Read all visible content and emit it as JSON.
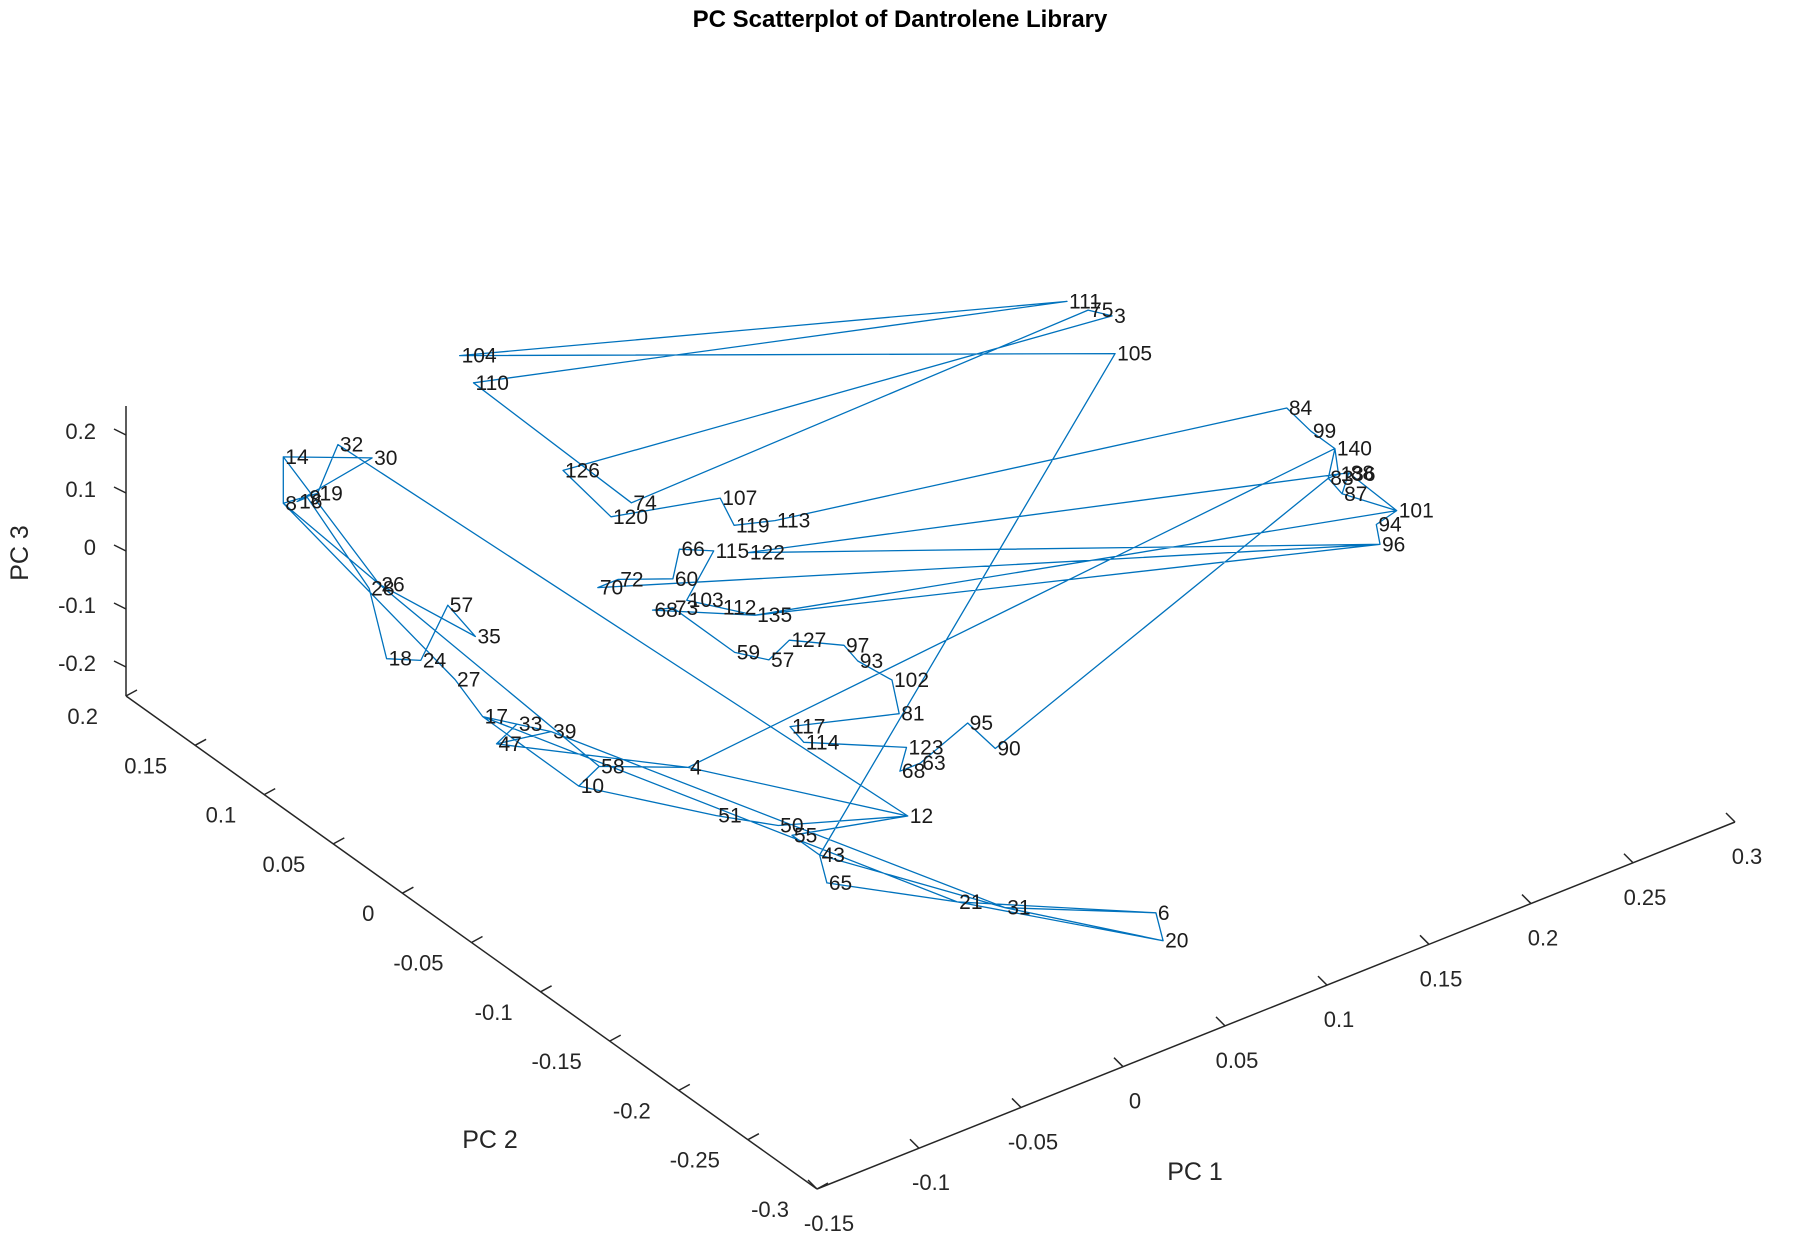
{
  "chart_data": {
    "type": "line",
    "title": "PC Scatterplot of Dantrolene Library",
    "xlabel": "PC 1",
    "ylabel": "PC 2",
    "zlabel": "PC 3",
    "grid": false,
    "legend": "none",
    "line_color": "#0072BD",
    "xlim": [
      -0.15,
      0.3
    ],
    "ylim": [
      -0.3,
      0.2
    ],
    "zlim": [
      -0.25,
      0.25
    ],
    "xticks": [
      "-0.15",
      "-0.1",
      "-0.05",
      "0",
      "0.05",
      "0.1",
      "0.15",
      "0.2",
      "0.25",
      "0.3"
    ],
    "yticks": [
      "-0.3",
      "-0.25",
      "-0.2",
      "-0.15",
      "-0.1",
      "-0.05",
      "0",
      "0.05",
      "0.1",
      "0.15",
      "0.2"
    ],
    "zticks": [
      "-0.2",
      "-0.1",
      "0",
      "0.1",
      "0.2"
    ],
    "points": [
      {
        "label": "14",
        "x": -0.1,
        "y": 0.16,
        "z": 0.16
      },
      {
        "label": "32",
        "x": -0.08,
        "y": 0.15,
        "z": 0.17
      },
      {
        "label": "30",
        "x": -0.07,
        "y": 0.14,
        "z": 0.15
      },
      {
        "label": "16",
        "x": -0.1,
        "y": 0.15,
        "z": 0.1
      },
      {
        "label": "9",
        "x": -0.095,
        "y": 0.15,
        "z": 0.1
      },
      {
        "label": "19",
        "x": -0.09,
        "y": 0.15,
        "z": 0.1
      },
      {
        "label": "8",
        "x": -0.1,
        "y": 0.16,
        "z": 0.08
      },
      {
        "label": "104",
        "x": 0.0,
        "y": 0.18,
        "z": 0.16
      },
      {
        "label": "110",
        "x": 0.0,
        "y": 0.17,
        "z": 0.13
      },
      {
        "label": "75",
        "x": 0.22,
        "y": 0.05,
        "z": 0.15
      },
      {
        "label": "3",
        "x": 0.225,
        "y": 0.04,
        "z": 0.15
      },
      {
        "label": "111",
        "x": 0.23,
        "y": 0.08,
        "z": 0.1
      },
      {
        "label": "105",
        "x": 0.24,
        "y": 0.06,
        "z": 0.03
      },
      {
        "label": "126",
        "x": 0.01,
        "y": 0.12,
        "z": 0.05
      },
      {
        "label": "107",
        "x": 0.06,
        "y": 0.08,
        "z": 0.0
      },
      {
        "label": "74",
        "x": 0.03,
        "y": 0.1,
        "z": 0.0
      },
      {
        "label": "120",
        "x": 0.02,
        "y": 0.1,
        "z": -0.01
      },
      {
        "label": "119",
        "x": 0.06,
        "y": 0.07,
        "z": -0.03
      },
      {
        "label": "113",
        "x": 0.08,
        "y": 0.07,
        "z": -0.05
      },
      {
        "label": "122",
        "x": 0.06,
        "y": 0.06,
        "z": -0.06
      },
      {
        "label": "70",
        "x": 0.0,
        "y": 0.08,
        "z": -0.07
      },
      {
        "label": "72",
        "x": 0.01,
        "y": 0.08,
        "z": -0.07
      },
      {
        "label": "60",
        "x": 0.03,
        "y": 0.07,
        "z": -0.08
      },
      {
        "label": "66",
        "x": 0.04,
        "y": 0.08,
        "z": -0.06
      },
      {
        "label": "115",
        "x": 0.05,
        "y": 0.07,
        "z": -0.06
      },
      {
        "label": "103",
        "x": 0.03,
        "y": 0.06,
        "z": -0.1
      },
      {
        "label": "112",
        "x": 0.04,
        "y": 0.05,
        "z": -0.11
      },
      {
        "label": "135",
        "x": 0.05,
        "y": 0.04,
        "z": -0.12
      },
      {
        "label": "84",
        "x": 0.27,
        "y": -0.02,
        "z": 0.03
      },
      {
        "label": "99",
        "x": 0.275,
        "y": -0.03,
        "z": 0.0
      },
      {
        "label": "140",
        "x": 0.28,
        "y": -0.04,
        "z": -0.02
      },
      {
        "label": "83",
        "x": 0.27,
        "y": -0.05,
        "z": -0.04
      },
      {
        "label": "136",
        "x": 0.275,
        "y": -0.05,
        "z": -0.04
      },
      {
        "label": "88",
        "x": 0.28,
        "y": -0.05,
        "z": -0.045
      },
      {
        "label": "87",
        "x": 0.27,
        "y": -0.06,
        "z": -0.05
      },
      {
        "label": "101",
        "x": 0.29,
        "y": -0.07,
        "z": -0.09
      },
      {
        "label": "94",
        "x": 0.28,
        "y": -0.07,
        "z": -0.1
      },
      {
        "label": "96",
        "x": 0.275,
        "y": -0.08,
        "z": -0.11
      },
      {
        "label": "18",
        "x": -0.09,
        "y": 0.1,
        "z": -0.1
      },
      {
        "label": "24",
        "x": -0.08,
        "y": 0.09,
        "z": -0.1
      },
      {
        "label": "57",
        "x": -0.06,
        "y": 0.1,
        "z": -0.05
      },
      {
        "label": "35",
        "x": -0.06,
        "y": 0.08,
        "z": -0.07
      },
      {
        "label": "26",
        "x": -0.08,
        "y": 0.12,
        "z": -0.02
      },
      {
        "label": "28",
        "x": -0.085,
        "y": 0.12,
        "z": -0.02
      },
      {
        "label": "27",
        "x": -0.07,
        "y": 0.08,
        "z": -0.13
      },
      {
        "label": "17",
        "x": -0.07,
        "y": 0.06,
        "z": -0.16
      },
      {
        "label": "33",
        "x": -0.06,
        "y": 0.05,
        "z": -0.17
      },
      {
        "label": "39",
        "x": -0.05,
        "y": 0.04,
        "z": -0.18
      },
      {
        "label": "47",
        "x": -0.07,
        "y": 0.05,
        "z": -0.19
      },
      {
        "label": "4",
        "x": -0.01,
        "y": 0.0,
        "z": -0.23
      },
      {
        "label": "58",
        "x": -0.04,
        "y": 0.02,
        "z": -0.22
      },
      {
        "label": "10",
        "x": -0.05,
        "y": 0.02,
        "z": -0.24
      },
      {
        "label": "68",
        "x": 0.02,
        "y": 0.07,
        "z": -0.12
      },
      {
        "label": "73",
        "x": 0.03,
        "y": 0.07,
        "z": -0.13
      },
      {
        "label": "59",
        "x": 0.04,
        "y": 0.04,
        "z": -0.17
      },
      {
        "label": "57b",
        "x": 0.05,
        "y": 0.03,
        "z": -0.18
      },
      {
        "label": "127",
        "x": 0.06,
        "y": 0.03,
        "z": -0.16
      },
      {
        "label": "97",
        "x": 0.08,
        "y": 0.02,
        "z": -0.18
      },
      {
        "label": "93",
        "x": 0.08,
        "y": 0.01,
        "z": -0.19
      },
      {
        "label": "102",
        "x": 0.09,
        "y": 0.0,
        "z": -0.22
      },
      {
        "label": "81",
        "x": 0.08,
        "y": -0.02,
        "z": -0.23
      },
      {
        "label": "117",
        "x": 0.04,
        "y": 0.0,
        "z": -0.23
      },
      {
        "label": "114",
        "x": 0.04,
        "y": -0.01,
        "z": -0.24
      },
      {
        "label": "123",
        "x": 0.07,
        "y": -0.04,
        "z": -0.24
      },
      {
        "label": "68b",
        "x": 0.06,
        "y": -0.05,
        "z": -0.25
      },
      {
        "label": "63",
        "x": 0.07,
        "y": -0.05,
        "z": -0.25
      },
      {
        "label": "95",
        "x": 0.1,
        "y": -0.04,
        "z": -0.24
      },
      {
        "label": "90",
        "x": 0.1,
        "y": -0.06,
        "z": -0.25
      },
      {
        "label": "12",
        "x": 0.03,
        "y": -0.1,
        "z": -0.2
      },
      {
        "label": "51",
        "x": -0.03,
        "y": -0.05,
        "z": -0.2
      },
      {
        "label": "50",
        "x": -0.02,
        "y": -0.08,
        "z": -0.18
      },
      {
        "label": "55",
        "x": -0.02,
        "y": -0.09,
        "z": -0.18
      },
      {
        "label": "43",
        "x": -0.02,
        "y": -0.11,
        "z": -0.18
      },
      {
        "label": "65",
        "x": -0.03,
        "y": -0.13,
        "z": -0.18
      },
      {
        "label": "21",
        "x": 0.0,
        "y": -0.18,
        "z": -0.17
      },
      {
        "label": "31",
        "x": 0.01,
        "y": -0.2,
        "z": -0.16
      },
      {
        "label": "6",
        "x": 0.05,
        "y": -0.25,
        "z": -0.14
      },
      {
        "label": "20",
        "x": 0.04,
        "y": -0.27,
        "z": -0.14
      }
    ],
    "path_order": [
      "14",
      "30",
      "16",
      "9",
      "28",
      "18",
      "24",
      "57",
      "35",
      "26",
      "8",
      "27",
      "17",
      "33",
      "39",
      "47",
      "4",
      "58",
      "10",
      "51",
      "50",
      "12",
      "55",
      "43",
      "65",
      "21",
      "6",
      "20",
      "31",
      "43",
      "105",
      "104",
      "111",
      "110",
      "74",
      "75",
      "3",
      "126",
      "120",
      "107",
      "119",
      "113",
      "84",
      "99",
      "140",
      "83",
      "136",
      "88",
      "87",
      "101",
      "94",
      "96",
      "70",
      "72",
      "60",
      "66",
      "115",
      "103",
      "112",
      "135",
      "68",
      "73",
      "59",
      "57b",
      "127",
      "97",
      "93",
      "102",
      "81",
      "117",
      "114",
      "123",
      "68b",
      "63",
      "95",
      "90",
      "83",
      "87",
      "88",
      "101",
      "135",
      "96",
      "122",
      "136",
      "140",
      "4",
      "12",
      "32",
      "19",
      "8",
      "14",
      "26",
      "58",
      "10",
      "17",
      "21",
      "20",
      "6",
      "31",
      "39",
      "47",
      "33"
    ]
  }
}
